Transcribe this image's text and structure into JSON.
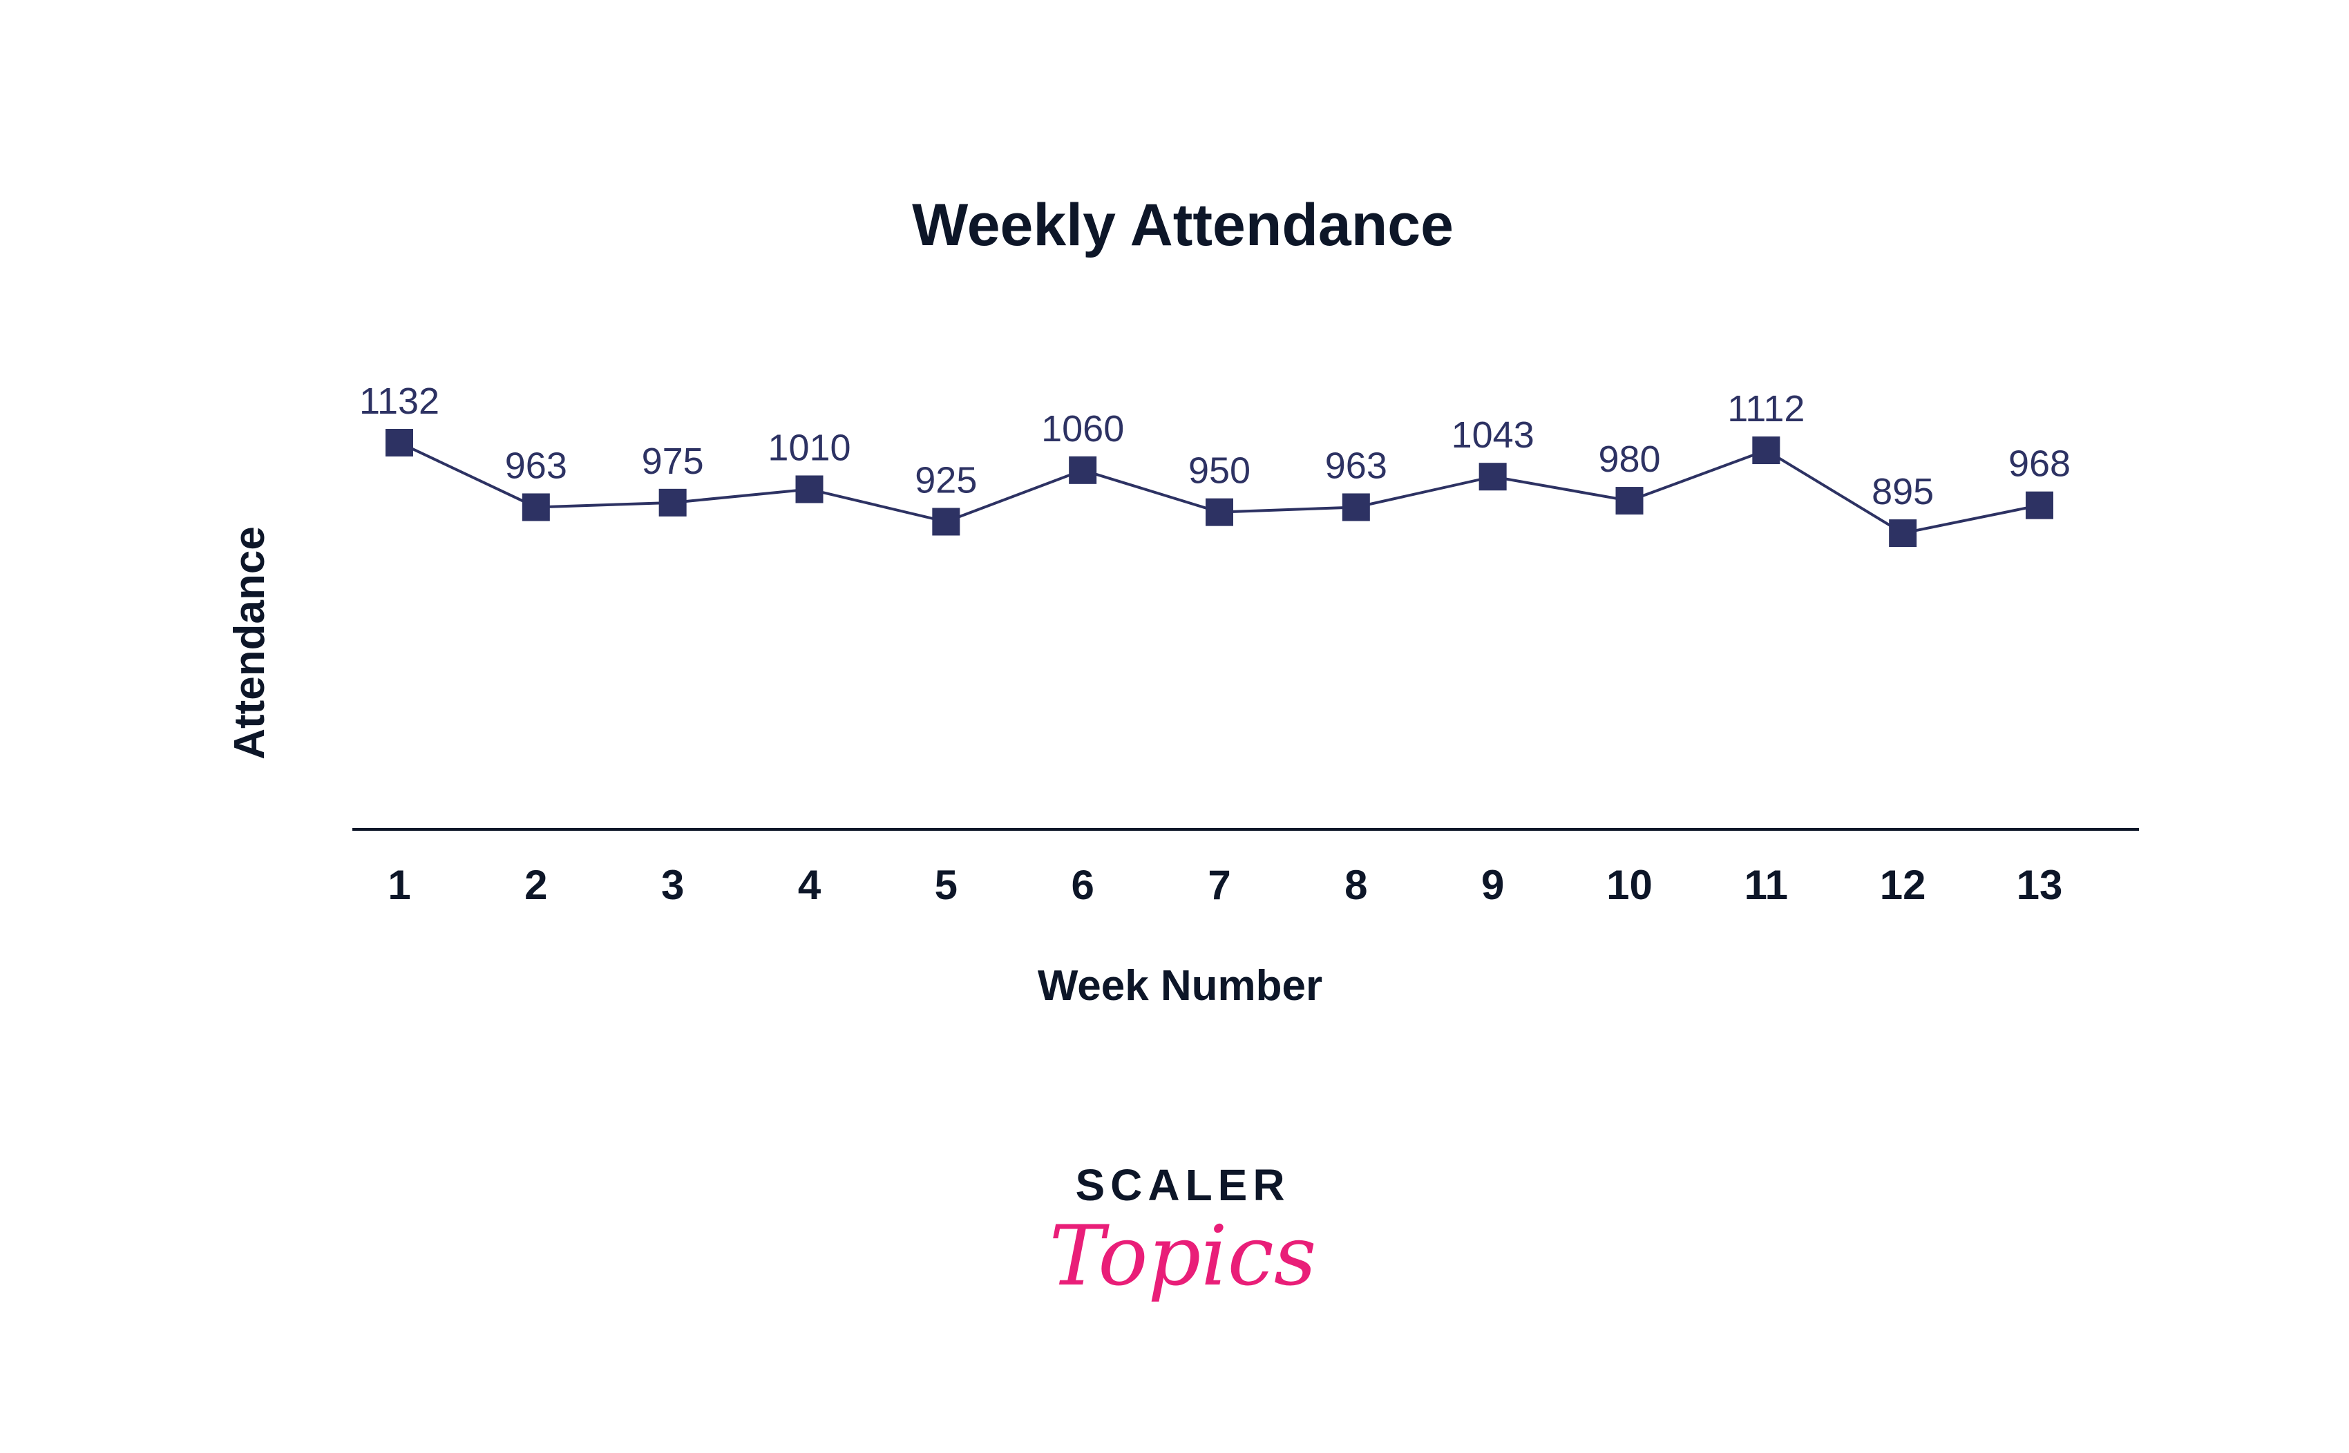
{
  "chart_data": {
    "type": "line",
    "title": "Weekly Attendance",
    "xlabel": "Week Number",
    "ylabel": "Attendance",
    "categories": [
      "1",
      "2",
      "3",
      "4",
      "5",
      "6",
      "7",
      "8",
      "9",
      "10",
      "11",
      "12",
      "13"
    ],
    "series": [
      {
        "values": [
          1132,
          963,
          975,
          1010,
          925,
          1060,
          950,
          963,
          1043,
          980,
          1112,
          895,
          968
        ]
      }
    ],
    "marker": "square",
    "data_labels": true,
    "grid": false,
    "color": "#2d3263"
  },
  "logo": {
    "line1": "SCALER",
    "line2": "Topics",
    "accent": "#e91e78"
  }
}
